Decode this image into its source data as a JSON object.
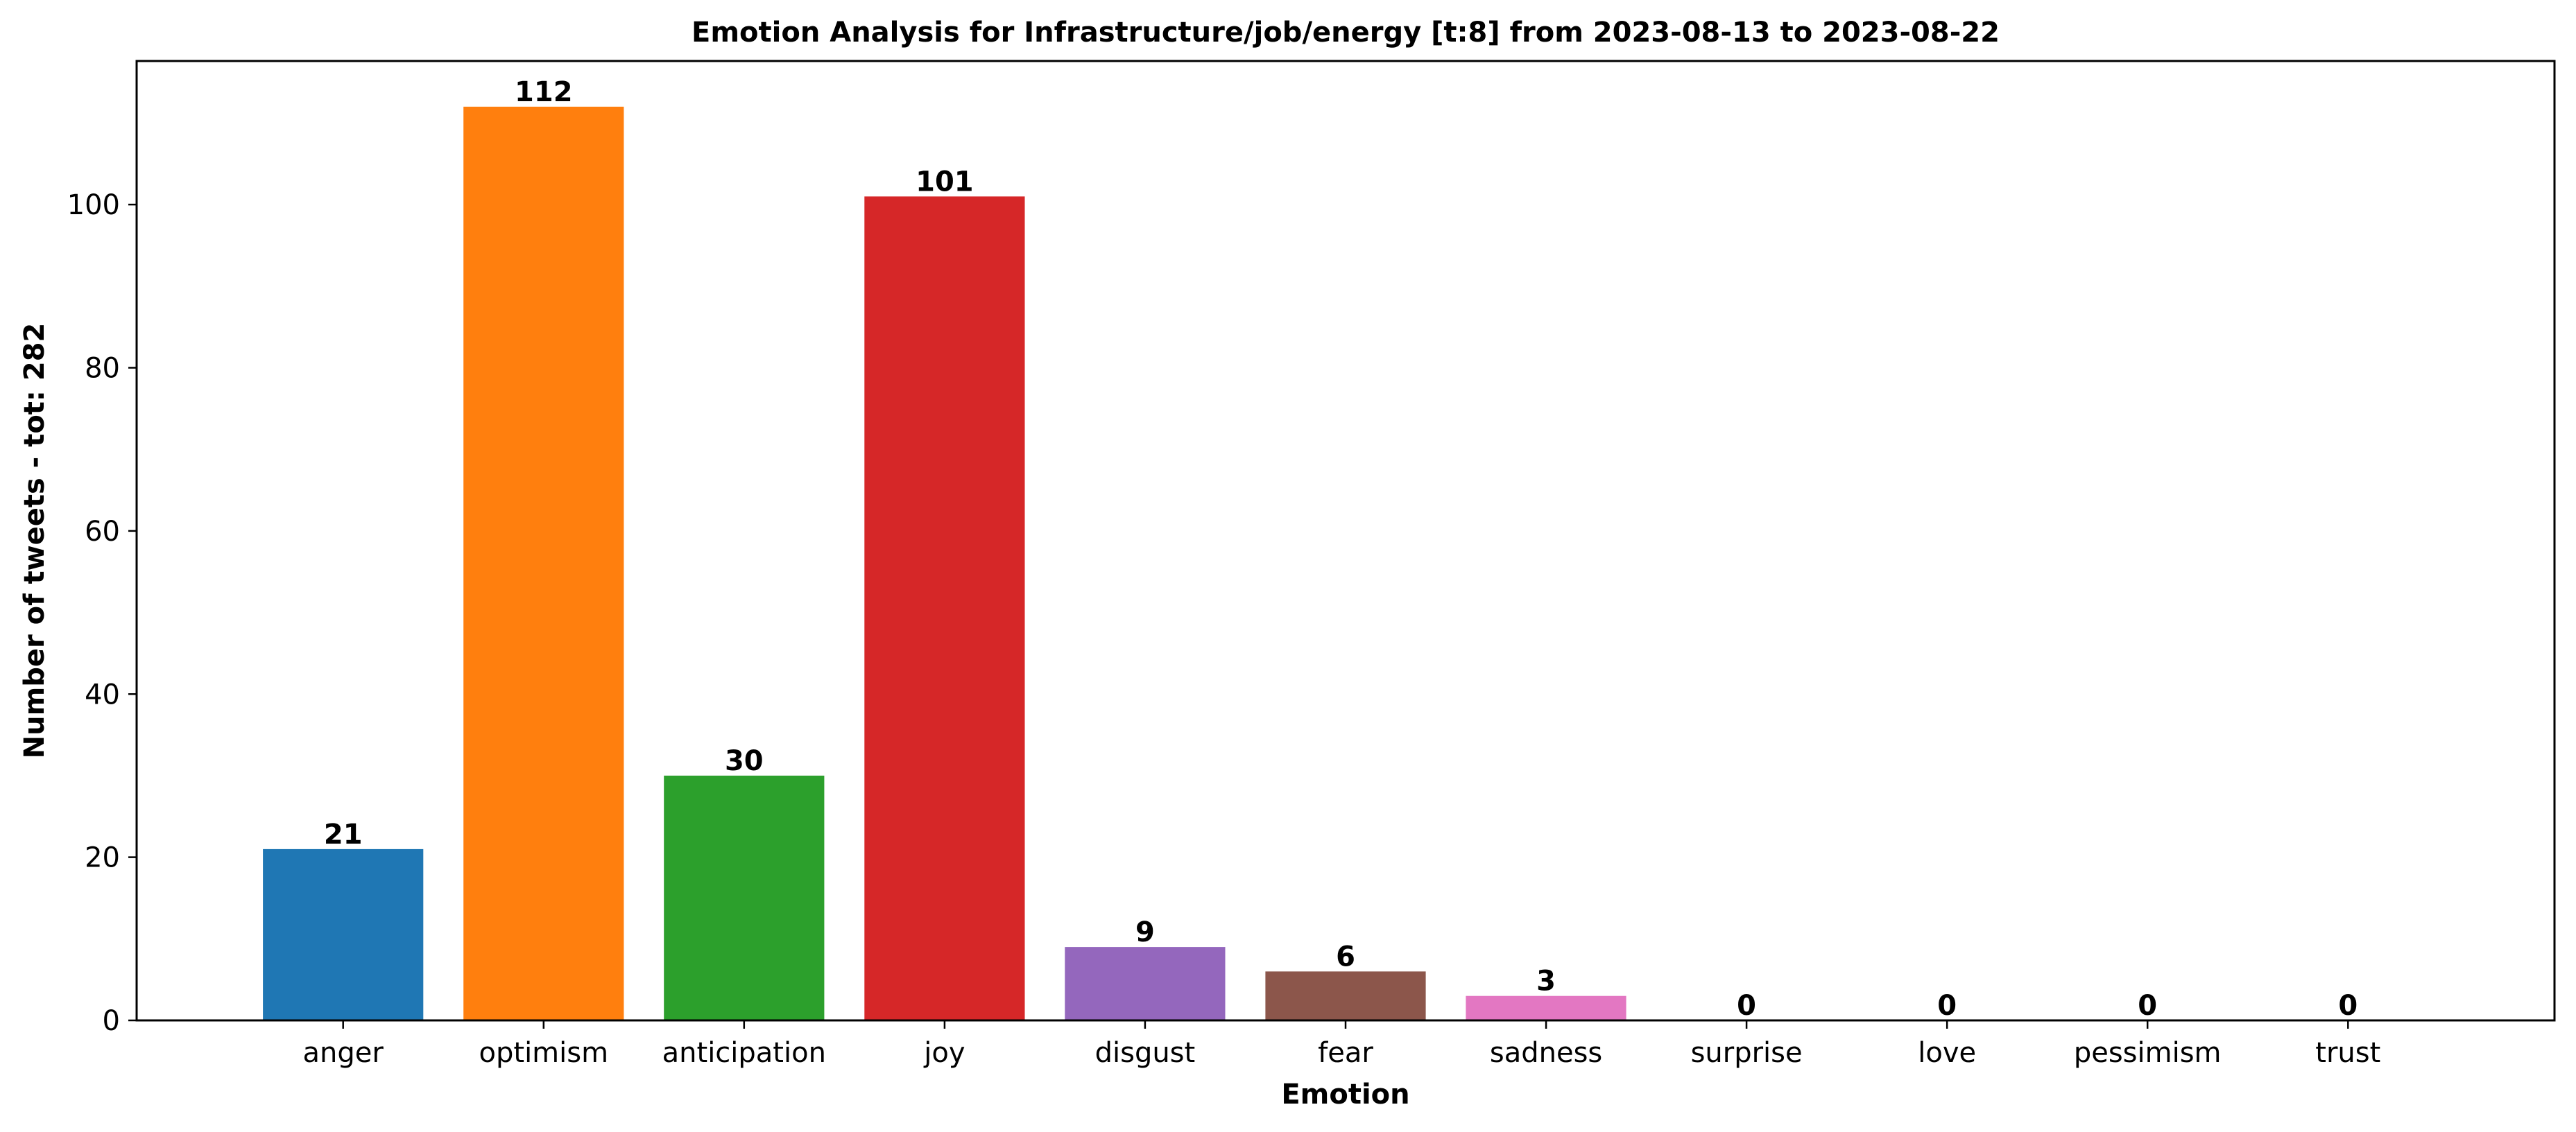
{
  "chart_data": {
    "type": "bar",
    "title": "Emotion Analysis for Infrastructure/job/energy [t:8] from 2023-08-13 to 2023-08-22",
    "xlabel": "Emotion",
    "ylabel": "Number of tweets - tot: 282",
    "categories": [
      "anger",
      "optimism",
      "anticipation",
      "joy",
      "disgust",
      "fear",
      "sadness",
      "surprise",
      "love",
      "pessimism",
      "trust"
    ],
    "values": [
      21,
      112,
      30,
      101,
      9,
      6,
      3,
      0,
      0,
      0,
      0
    ],
    "colors": [
      "#1f77b4",
      "#ff7f0e",
      "#2ca02c",
      "#d62728",
      "#9467bd",
      "#8c564b",
      "#e377c2",
      "#7f7f7f",
      "#bcbd22",
      "#17becf",
      "#1f77b4"
    ],
    "ylim": [
      0,
      117.6
    ],
    "yticks": [
      0,
      20,
      40,
      60,
      80,
      100
    ],
    "grid": false,
    "legend": "none"
  }
}
